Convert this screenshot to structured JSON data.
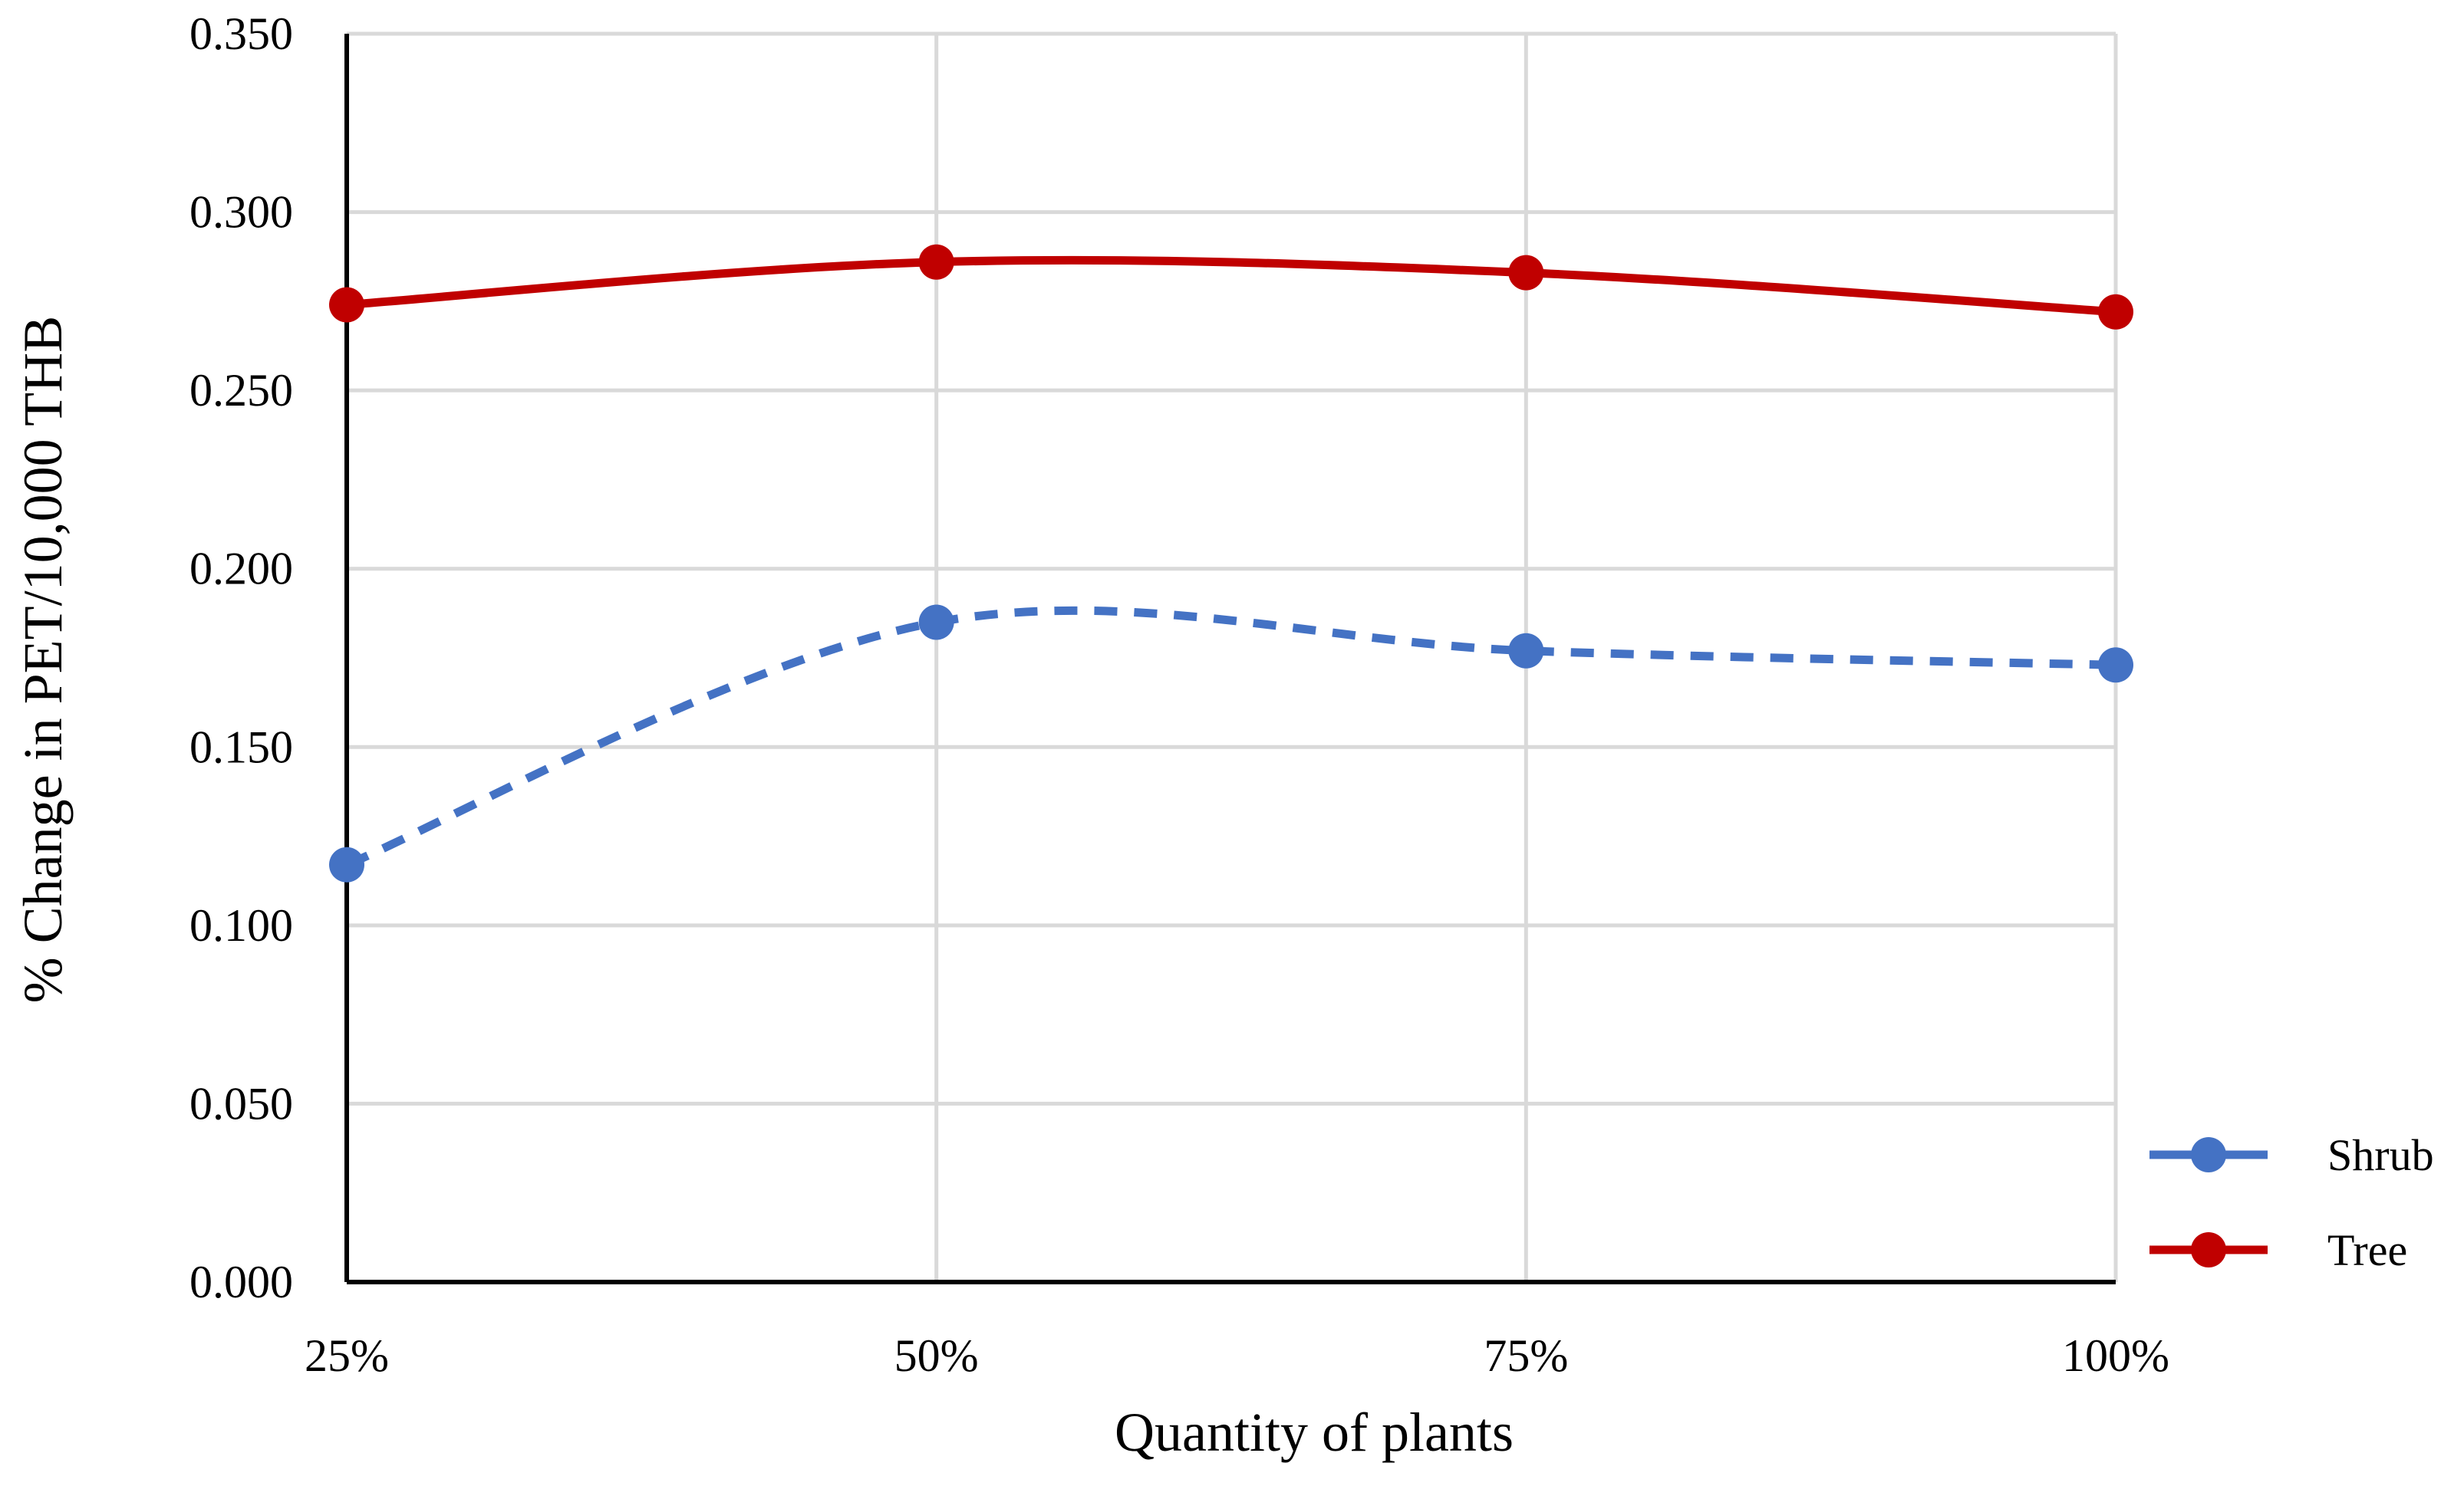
{
  "chart_data": {
    "type": "line",
    "title": "",
    "xlabel": "Quantity of plants",
    "ylabel": "% Change in PET/10,000 THB",
    "categories": [
      "25%",
      "50%",
      "75%",
      "100%"
    ],
    "ylim": [
      0,
      0.35
    ],
    "yticks": [
      "0.000",
      "0.050",
      "0.100",
      "0.150",
      "0.200",
      "0.250",
      "0.300",
      "0.350"
    ],
    "grid": true,
    "legend_position": "right",
    "series": [
      {
        "name": "Shrub",
        "values": [
          0.117,
          0.185,
          0.177,
          0.173
        ],
        "color": "#4472C4",
        "dash": "dashed",
        "smooth": true
      },
      {
        "name": "Tree",
        "values": [
          0.274,
          0.286,
          0.283,
          0.272
        ],
        "color": "#C00000",
        "dash": "solid",
        "smooth": true
      }
    ]
  }
}
